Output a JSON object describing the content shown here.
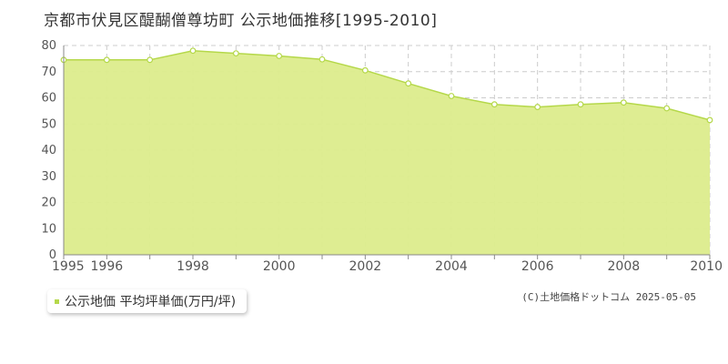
{
  "header": {
    "title": "京都市伏見区醍醐僧尊坊町 公示地価推移[1995-2010]"
  },
  "legend": {
    "label": "公示地価 平均坪単価(万円/坪)"
  },
  "footer": {
    "copyright": "(C)土地価格ドットコム 2025-05-05"
  },
  "colors": {
    "fill": "#dcec8c",
    "line": "#b5d84a",
    "marker_fill": "#ffffff",
    "marker_stroke": "#b5d84a",
    "grid": "#cccccc",
    "axis": "#888888",
    "legend_marker": "#b5d84a"
  },
  "chart_data": {
    "type": "area",
    "title": "京都市伏見区醍醐僧尊坊町 公示地価推移[1995-2010]",
    "x": [
      1995,
      1996,
      1997,
      1998,
      1999,
      2000,
      2001,
      2002,
      2003,
      2004,
      2005,
      2006,
      2007,
      2008,
      2009,
      2010
    ],
    "series": [
      {
        "name": "公示地価 平均坪単価(万円/坪)",
        "values": [
          74.5,
          74.5,
          74.5,
          78.0,
          77.0,
          76.0,
          74.7,
          70.5,
          65.5,
          60.7,
          57.5,
          56.5,
          57.5,
          58.2,
          56.0,
          51.5
        ]
      }
    ],
    "xlim": [
      1995,
      2010
    ],
    "ylim": [
      0,
      80
    ],
    "x_ticks": [
      1995,
      1996,
      1998,
      2000,
      2002,
      2004,
      2006,
      2008,
      2010
    ],
    "y_ticks": [
      0,
      10,
      20,
      30,
      40,
      50,
      60,
      70,
      80
    ],
    "grid": true,
    "legend_position": "bottom-left"
  }
}
